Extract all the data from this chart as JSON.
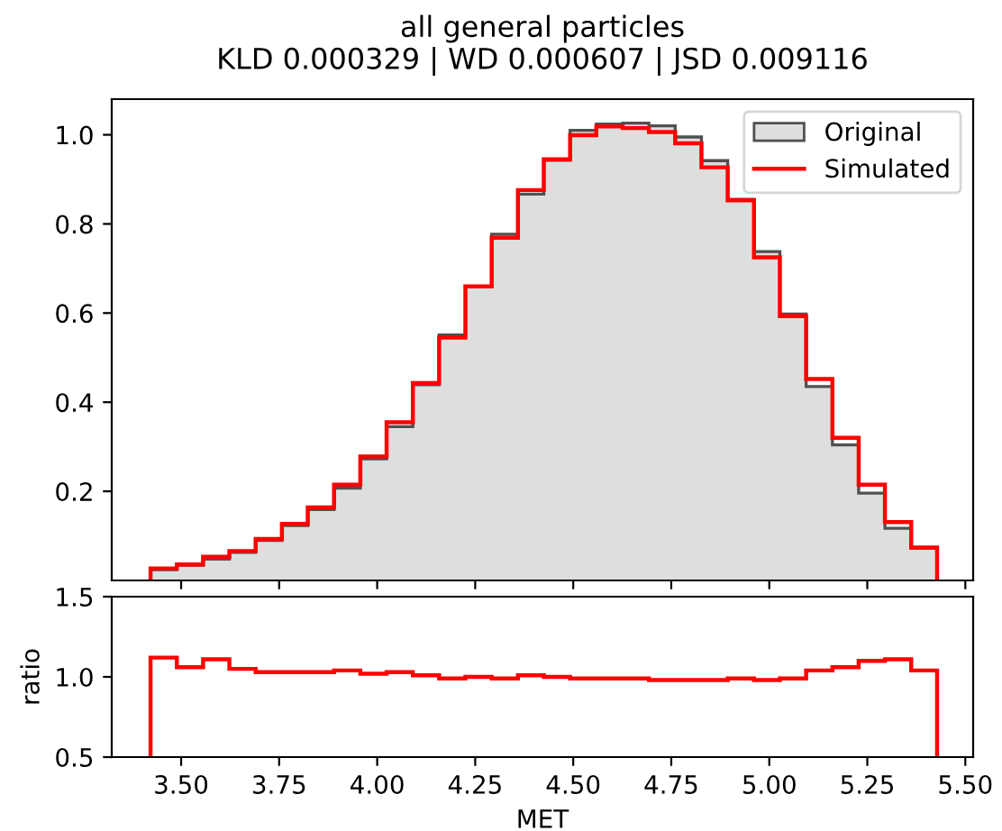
{
  "chart_data": [
    {
      "type": "histogram",
      "title": "all general particles",
      "subtitle": "KLD 0.000329 | WD 0.000607 | JSD 0.009116",
      "bins": [
        3.422,
        3.489,
        3.556,
        3.623,
        3.69,
        3.757,
        3.823,
        3.89,
        3.957,
        4.024,
        4.091,
        4.158,
        4.225,
        4.292,
        4.359,
        4.425,
        4.492,
        4.559,
        4.626,
        4.693,
        4.76,
        4.827,
        4.894,
        4.961,
        5.027,
        5.094,
        5.161,
        5.228,
        5.295,
        5.362,
        5.428
      ],
      "series": [
        {
          "name": "Original",
          "color": "#dedede",
          "values": [
            0.024,
            0.034,
            0.048,
            0.063,
            0.09,
            0.123,
            0.159,
            0.207,
            0.273,
            0.345,
            0.439,
            0.551,
            0.66,
            0.777,
            0.867,
            0.943,
            1.01,
            1.024,
            1.026,
            1.02,
            0.995,
            0.942,
            0.855,
            0.738,
            0.598,
            0.435,
            0.304,
            0.196,
            0.117,
            0.072
          ]
        },
        {
          "name": "Simulated",
          "line_style": "solid",
          "color": "#ff0000",
          "values": [
            0.027,
            0.036,
            0.053,
            0.066,
            0.093,
            0.127,
            0.164,
            0.215,
            0.278,
            0.355,
            0.443,
            0.545,
            0.66,
            0.769,
            0.876,
            0.945,
            0.999,
            1.019,
            1.015,
            1.006,
            0.981,
            0.927,
            0.853,
            0.725,
            0.593,
            0.452,
            0.32,
            0.215,
            0.131,
            0.074
          ]
        }
      ],
      "xlim": [
        3.323,
        5.52
      ],
      "xticks": [
        3.5,
        3.75,
        4.0,
        4.25,
        4.5,
        4.75,
        5.0,
        5.25,
        5.5
      ],
      "ylim": [
        0,
        1.08
      ],
      "yticks": [
        {
          "value": 0.2,
          "label": "0.2"
        },
        {
          "value": 0.4,
          "label": "0.4"
        },
        {
          "value": 0.6,
          "label": "0.6"
        },
        {
          "value": 0.8,
          "label": "0.8"
        },
        {
          "value": 1.0,
          "label": "1.0"
        }
      ],
      "tick_labels": "y",
      "legend": "top right",
      "grid": false
    },
    {
      "type": "histogram",
      "xlabel": "MET",
      "ylabel": "ratio",
      "bins": [
        3.422,
        3.489,
        3.556,
        3.623,
        3.69,
        3.757,
        3.823,
        3.89,
        3.957,
        4.024,
        4.091,
        4.158,
        4.225,
        4.292,
        4.359,
        4.425,
        4.492,
        4.559,
        4.626,
        4.693,
        4.76,
        4.827,
        4.894,
        4.961,
        5.027,
        5.094,
        5.161,
        5.228,
        5.295,
        5.362,
        5.428
      ],
      "series": [
        {
          "line_style": "solid",
          "color": "#ff0000",
          "values": [
            1.12,
            1.06,
            1.11,
            1.05,
            1.03,
            1.03,
            1.03,
            1.04,
            1.02,
            1.03,
            1.01,
            0.99,
            1.0,
            0.99,
            1.01,
            1.0,
            0.99,
            0.99,
            0.99,
            0.98,
            0.98,
            0.98,
            0.99,
            0.98,
            0.99,
            1.04,
            1.06,
            1.1,
            1.11,
            1.04
          ]
        }
      ],
      "xlim": [
        3.323,
        5.52
      ],
      "xticks": [
        {
          "value": 3.5,
          "label": "3.50"
        },
        {
          "value": 3.75,
          "label": "3.75"
        },
        {
          "value": 4.0,
          "label": "4.00"
        },
        {
          "value": 4.25,
          "label": "4.25"
        },
        {
          "value": 4.5,
          "label": "4.50"
        },
        {
          "value": 4.75,
          "label": "4.75"
        },
        {
          "value": 5.0,
          "label": "5.00"
        },
        {
          "value": 5.25,
          "label": "5.25"
        },
        {
          "value": 5.5,
          "label": "5.50"
        }
      ],
      "ylim": [
        0.5,
        1.5
      ],
      "yticks": [
        {
          "value": 0.5,
          "label": "0.5"
        },
        {
          "value": 1.0,
          "label": "1.0"
        },
        {
          "value": 1.5,
          "label": "1.5"
        }
      ],
      "grid": false
    }
  ]
}
